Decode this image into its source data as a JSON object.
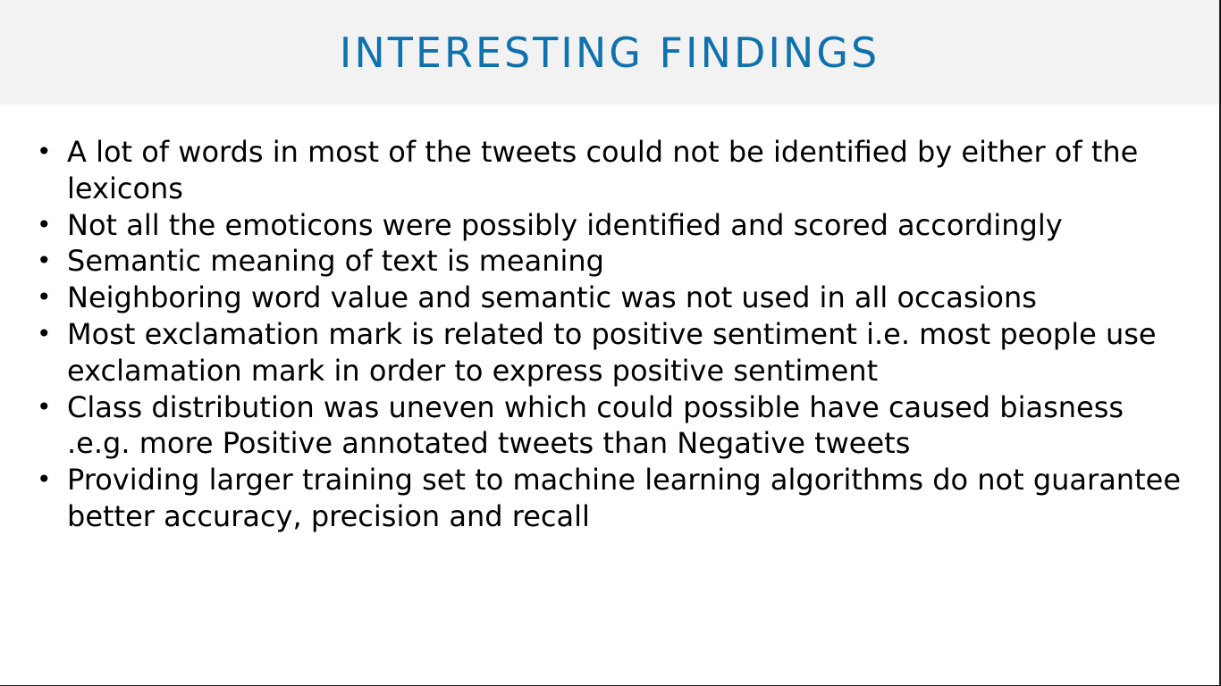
{
  "slide": {
    "title": "INTERESTING FINDINGS",
    "bullet_symbol": "•",
    "bullets": [
      "A lot of words in most of the tweets could not be identified by either of the lexicons",
      "Not all the emoticons were possibly identified and scored accordingly",
      "Semantic meaning of text is meaning",
      "Neighboring word value and semantic was not used in all occasions",
      "Most exclamation mark is related to positive sentiment i.e. most people use exclamation mark in order to express positive sentiment",
      "Class distribution was uneven which could possible have caused biasness .e.g. more Positive annotated tweets than Negative tweets",
      "Providing larger training set to machine learning algorithms do not guarantee better accuracy, precision and recall"
    ]
  },
  "colors": {
    "title": "#0f72ae",
    "title_background": "#f2f2f2",
    "body_text": "#000000"
  }
}
